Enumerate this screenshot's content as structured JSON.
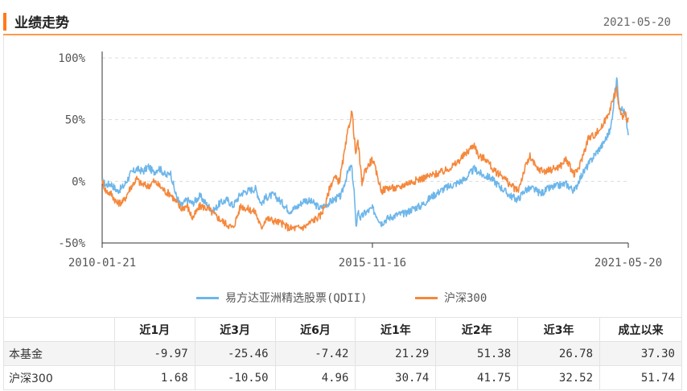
{
  "header": {
    "title": "业绩走势",
    "date": "2021-05-20"
  },
  "chart_data": {
    "type": "line",
    "title": "",
    "xlabel": "",
    "ylabel": "",
    "x_ticks": [
      "2010-01-21",
      "2015-11-16",
      "2021-05-20"
    ],
    "y_ticks": [
      "100%",
      "50%",
      "0%",
      "-50%"
    ],
    "ylim": [
      -50,
      100
    ],
    "x_range": [
      "2010-01-21",
      "2021-05-20"
    ],
    "grid": "horizontal dashed",
    "legend_position": "bottom",
    "series": [
      {
        "name": "易方达亚洲精选股票(QDII)",
        "color": "#6db6ea",
        "points": [
          [
            "2010-01-21",
            0
          ],
          [
            "2010-02-20",
            -3
          ],
          [
            "2010-04-01",
            -2
          ],
          [
            "2010-05-20",
            -8
          ],
          [
            "2010-07-10",
            -4
          ],
          [
            "2010-09-01",
            6
          ],
          [
            "2010-10-20",
            10
          ],
          [
            "2010-12-10",
            8
          ],
          [
            "2011-01-20",
            12
          ],
          [
            "2011-03-01",
            7
          ],
          [
            "2011-04-10",
            11
          ],
          [
            "2011-05-10",
            8
          ],
          [
            "2011-06-10",
            4
          ],
          [
            "2011-07-10",
            8
          ],
          [
            "2011-08-20",
            -10
          ],
          [
            "2011-10-01",
            -20
          ],
          [
            "2011-11-20",
            -15
          ],
          [
            "2012-01-01",
            -18
          ],
          [
            "2012-03-01",
            -12
          ],
          [
            "2012-05-01",
            -20
          ],
          [
            "2012-06-15",
            -24
          ],
          [
            "2012-08-01",
            -18
          ],
          [
            "2012-10-01",
            -15
          ],
          [
            "2012-11-15",
            -20
          ],
          [
            "2013-01-15",
            -10
          ],
          [
            "2013-03-01",
            -8
          ],
          [
            "2013-05-10",
            -6
          ],
          [
            "2013-06-25",
            -18
          ],
          [
            "2013-08-01",
            -13
          ],
          [
            "2013-10-01",
            -11
          ],
          [
            "2013-12-01",
            -17
          ],
          [
            "2014-02-01",
            -24
          ],
          [
            "2014-04-01",
            -21
          ],
          [
            "2014-06-01",
            -15
          ],
          [
            "2014-08-01",
            -17
          ],
          [
            "2014-10-01",
            -22
          ],
          [
            "2014-12-01",
            -18
          ],
          [
            "2015-02-01",
            -14
          ],
          [
            "2015-03-15",
            -12
          ],
          [
            "2015-04-15",
            0
          ],
          [
            "2015-05-10",
            8
          ],
          [
            "2015-06-05",
            12
          ],
          [
            "2015-06-25",
            -8
          ],
          [
            "2015-07-10",
            -38
          ],
          [
            "2015-07-25",
            -24
          ],
          [
            "2015-08-15",
            -30
          ],
          [
            "2015-09-15",
            -26
          ],
          [
            "2015-11-16",
            -22
          ],
          [
            "2016-01-25",
            -34
          ],
          [
            "2016-03-15",
            -30
          ],
          [
            "2016-06-01",
            -27
          ],
          [
            "2016-08-01",
            -26
          ],
          [
            "2016-10-01",
            -22
          ],
          [
            "2016-12-01",
            -20
          ],
          [
            "2017-03-01",
            -12
          ],
          [
            "2017-06-01",
            -6
          ],
          [
            "2017-09-01",
            -2
          ],
          [
            "2017-11-15",
            2
          ],
          [
            "2018-01-25",
            10
          ],
          [
            "2018-04-01",
            5
          ],
          [
            "2018-06-01",
            3
          ],
          [
            "2018-08-01",
            -3
          ],
          [
            "2018-10-25",
            -11
          ],
          [
            "2019-01-01",
            -15
          ],
          [
            "2019-03-01",
            -7
          ],
          [
            "2019-05-01",
            -6
          ],
          [
            "2019-07-01",
            -10
          ],
          [
            "2019-09-01",
            -6
          ],
          [
            "2019-11-01",
            -4
          ],
          [
            "2020-01-15",
            -2
          ],
          [
            "2020-03-23",
            -8
          ],
          [
            "2020-05-01",
            2
          ],
          [
            "2020-07-01",
            12
          ],
          [
            "2020-09-01",
            22
          ],
          [
            "2020-11-01",
            30
          ],
          [
            "2021-01-01",
            42
          ],
          [
            "2021-02-18",
            84
          ],
          [
            "2021-03-10",
            62
          ],
          [
            "2021-04-05",
            58
          ],
          [
            "2021-04-25",
            55
          ],
          [
            "2021-05-10",
            45
          ],
          [
            "2021-05-20",
            37.3
          ]
        ]
      },
      {
        "name": "沪深300",
        "color": "#f5883c",
        "points": [
          [
            "2010-01-21",
            0
          ],
          [
            "2010-02-20",
            -8
          ],
          [
            "2010-04-01",
            -10
          ],
          [
            "2010-05-20",
            -18
          ],
          [
            "2010-07-10",
            -16
          ],
          [
            "2010-09-01",
            -5
          ],
          [
            "2010-10-20",
            2
          ],
          [
            "2010-11-20",
            -2
          ],
          [
            "2011-01-20",
            -4
          ],
          [
            "2011-03-01",
            0
          ],
          [
            "2011-04-10",
            -3
          ],
          [
            "2011-05-10",
            -6
          ],
          [
            "2011-06-10",
            -9
          ],
          [
            "2011-07-10",
            -10
          ],
          [
            "2011-08-20",
            -16
          ],
          [
            "2011-10-01",
            -22
          ],
          [
            "2011-11-20",
            -20
          ],
          [
            "2012-01-01",
            -30
          ],
          [
            "2012-03-01",
            -20
          ],
          [
            "2012-05-01",
            -22
          ],
          [
            "2012-07-01",
            -28
          ],
          [
            "2012-09-01",
            -33
          ],
          [
            "2012-11-15",
            -38
          ],
          [
            "2013-01-15",
            -20
          ],
          [
            "2013-03-01",
            -22
          ],
          [
            "2013-05-10",
            -25
          ],
          [
            "2013-06-25",
            -38
          ],
          [
            "2013-08-01",
            -30
          ],
          [
            "2013-10-01",
            -32
          ],
          [
            "2013-12-01",
            -34
          ],
          [
            "2014-02-01",
            -38
          ],
          [
            "2014-04-01",
            -38
          ],
          [
            "2014-06-01",
            -37
          ],
          [
            "2014-08-01",
            -32
          ],
          [
            "2014-10-01",
            -28
          ],
          [
            "2014-11-15",
            -18
          ],
          [
            "2014-12-15",
            -5
          ],
          [
            "2015-01-20",
            3
          ],
          [
            "2015-03-01",
            0
          ],
          [
            "2015-04-15",
            26
          ],
          [
            "2015-05-10",
            42
          ],
          [
            "2015-06-08",
            57
          ],
          [
            "2015-07-08",
            22
          ],
          [
            "2015-07-25",
            33
          ],
          [
            "2015-08-26",
            -2
          ],
          [
            "2015-09-15",
            8
          ],
          [
            "2015-11-16",
            18
          ],
          [
            "2016-01-28",
            -8
          ],
          [
            "2016-03-15",
            -5
          ],
          [
            "2016-06-01",
            -6
          ],
          [
            "2016-08-01",
            -2
          ],
          [
            "2016-10-01",
            0
          ],
          [
            "2016-12-01",
            2
          ],
          [
            "2017-03-01",
            5
          ],
          [
            "2017-06-01",
            8
          ],
          [
            "2017-09-01",
            14
          ],
          [
            "2017-11-15",
            22
          ],
          [
            "2018-01-25",
            30
          ],
          [
            "2018-03-01",
            20
          ],
          [
            "2018-05-01",
            18
          ],
          [
            "2018-07-01",
            8
          ],
          [
            "2018-09-01",
            5
          ],
          [
            "2018-10-25",
            -2
          ],
          [
            "2019-01-03",
            -8
          ],
          [
            "2019-02-25",
            10
          ],
          [
            "2019-04-08",
            20
          ],
          [
            "2019-06-01",
            10
          ],
          [
            "2019-08-15",
            8
          ],
          [
            "2019-10-01",
            10
          ],
          [
            "2019-12-01",
            12
          ],
          [
            "2020-01-15",
            18
          ],
          [
            "2020-03-23",
            5
          ],
          [
            "2020-05-01",
            12
          ],
          [
            "2020-07-10",
            35
          ],
          [
            "2020-09-01",
            38
          ],
          [
            "2020-11-01",
            45
          ],
          [
            "2021-01-01",
            60
          ],
          [
            "2021-02-18",
            75
          ],
          [
            "2021-03-10",
            58
          ],
          [
            "2021-04-05",
            52
          ],
          [
            "2021-04-25",
            55
          ],
          [
            "2021-05-10",
            50
          ],
          [
            "2021-05-20",
            51.74
          ]
        ]
      }
    ]
  },
  "table": {
    "headers": [
      "",
      "近1月",
      "近3月",
      "近6月",
      "近1年",
      "近2年",
      "近3年",
      "成立以来"
    ],
    "rows": [
      {
        "label": "本基金",
        "values": [
          "-9.97",
          "-25.46",
          "-7.42",
          "21.29",
          "51.38",
          "26.78",
          "37.30"
        ]
      },
      {
        "label": "沪深300",
        "values": [
          "1.68",
          "-10.50",
          "4.96",
          "30.74",
          "41.75",
          "32.52",
          "51.74"
        ]
      }
    ]
  }
}
